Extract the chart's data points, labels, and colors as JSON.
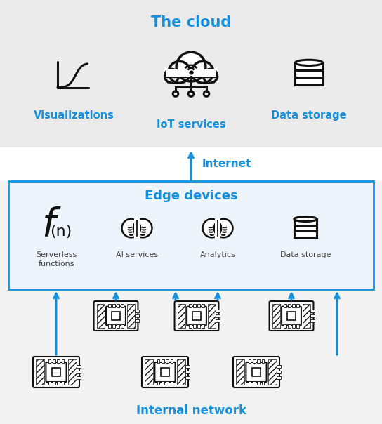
{
  "bg_color": "#f2f2f2",
  "white": "#ffffff",
  "blue": "#1490df",
  "black": "#111111",
  "gray_edge": "#e8e8f0",
  "title_cloud": "The cloud",
  "label_viz": "Visualizations",
  "label_iot": "IoT services",
  "label_storage_cloud": "Data storage",
  "label_internet": "Internet",
  "label_edge": "Edge devices",
  "label_serverless": "Serverless\nfunctions",
  "label_ai": "AI services",
  "label_analytics": "Analytics",
  "label_storage_edge": "Data storage",
  "label_internal": "Internal network",
  "fig_width": 5.44,
  "fig_height": 6.04,
  "dpi": 100
}
